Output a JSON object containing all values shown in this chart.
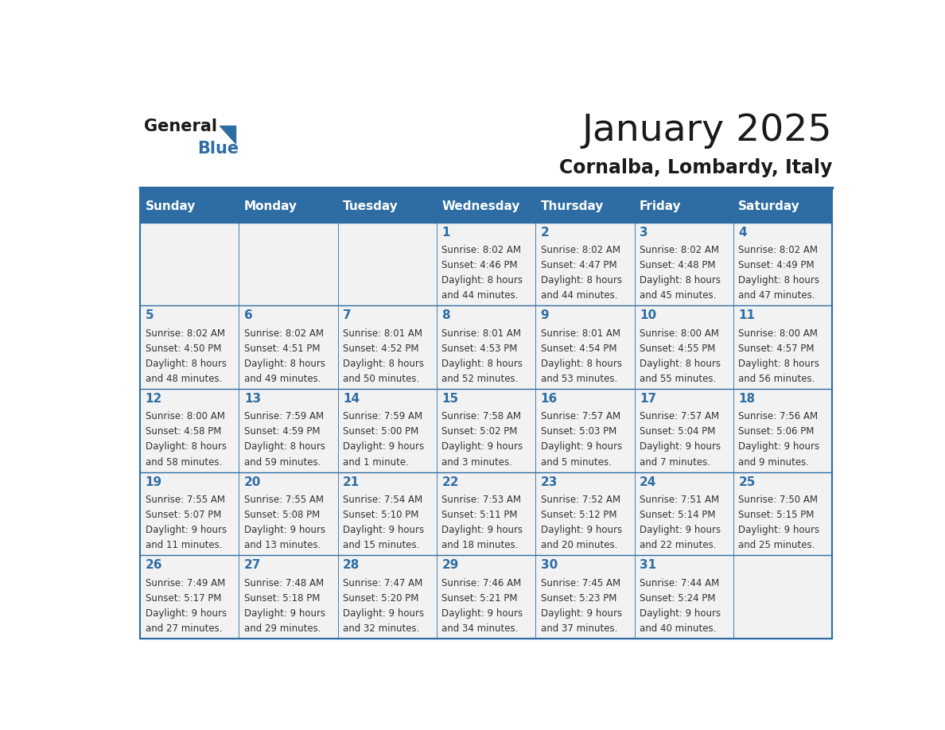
{
  "title": "January 2025",
  "subtitle": "Cornalba, Lombardy, Italy",
  "header_bg": "#2E6DA4",
  "header_text_color": "#FFFFFF",
  "cell_bg": "#F2F2F2",
  "border_color": "#2E6DA4",
  "day_names": [
    "Sunday",
    "Monday",
    "Tuesday",
    "Wednesday",
    "Thursday",
    "Friday",
    "Saturday"
  ],
  "title_color": "#1a1a1a",
  "subtitle_color": "#1a1a1a",
  "day_number_color": "#2E6DA4",
  "cell_text_color": "#333333",
  "calendar": [
    [
      {
        "day": null,
        "sunrise": null,
        "sunset": null,
        "daylight": null
      },
      {
        "day": null,
        "sunrise": null,
        "sunset": null,
        "daylight": null
      },
      {
        "day": null,
        "sunrise": null,
        "sunset": null,
        "daylight": null
      },
      {
        "day": 1,
        "sunrise": "8:02 AM",
        "sunset": "4:46 PM",
        "daylight": "8 hours\nand 44 minutes."
      },
      {
        "day": 2,
        "sunrise": "8:02 AM",
        "sunset": "4:47 PM",
        "daylight": "8 hours\nand 44 minutes."
      },
      {
        "day": 3,
        "sunrise": "8:02 AM",
        "sunset": "4:48 PM",
        "daylight": "8 hours\nand 45 minutes."
      },
      {
        "day": 4,
        "sunrise": "8:02 AM",
        "sunset": "4:49 PM",
        "daylight": "8 hours\nand 47 minutes."
      }
    ],
    [
      {
        "day": 5,
        "sunrise": "8:02 AM",
        "sunset": "4:50 PM",
        "daylight": "8 hours\nand 48 minutes."
      },
      {
        "day": 6,
        "sunrise": "8:02 AM",
        "sunset": "4:51 PM",
        "daylight": "8 hours\nand 49 minutes."
      },
      {
        "day": 7,
        "sunrise": "8:01 AM",
        "sunset": "4:52 PM",
        "daylight": "8 hours\nand 50 minutes."
      },
      {
        "day": 8,
        "sunrise": "8:01 AM",
        "sunset": "4:53 PM",
        "daylight": "8 hours\nand 52 minutes."
      },
      {
        "day": 9,
        "sunrise": "8:01 AM",
        "sunset": "4:54 PM",
        "daylight": "8 hours\nand 53 minutes."
      },
      {
        "day": 10,
        "sunrise": "8:00 AM",
        "sunset": "4:55 PM",
        "daylight": "8 hours\nand 55 minutes."
      },
      {
        "day": 11,
        "sunrise": "8:00 AM",
        "sunset": "4:57 PM",
        "daylight": "8 hours\nand 56 minutes."
      }
    ],
    [
      {
        "day": 12,
        "sunrise": "8:00 AM",
        "sunset": "4:58 PM",
        "daylight": "8 hours\nand 58 minutes."
      },
      {
        "day": 13,
        "sunrise": "7:59 AM",
        "sunset": "4:59 PM",
        "daylight": "8 hours\nand 59 minutes."
      },
      {
        "day": 14,
        "sunrise": "7:59 AM",
        "sunset": "5:00 PM",
        "daylight": "9 hours\nand 1 minute."
      },
      {
        "day": 15,
        "sunrise": "7:58 AM",
        "sunset": "5:02 PM",
        "daylight": "9 hours\nand 3 minutes."
      },
      {
        "day": 16,
        "sunrise": "7:57 AM",
        "sunset": "5:03 PM",
        "daylight": "9 hours\nand 5 minutes."
      },
      {
        "day": 17,
        "sunrise": "7:57 AM",
        "sunset": "5:04 PM",
        "daylight": "9 hours\nand 7 minutes."
      },
      {
        "day": 18,
        "sunrise": "7:56 AM",
        "sunset": "5:06 PM",
        "daylight": "9 hours\nand 9 minutes."
      }
    ],
    [
      {
        "day": 19,
        "sunrise": "7:55 AM",
        "sunset": "5:07 PM",
        "daylight": "9 hours\nand 11 minutes."
      },
      {
        "day": 20,
        "sunrise": "7:55 AM",
        "sunset": "5:08 PM",
        "daylight": "9 hours\nand 13 minutes."
      },
      {
        "day": 21,
        "sunrise": "7:54 AM",
        "sunset": "5:10 PM",
        "daylight": "9 hours\nand 15 minutes."
      },
      {
        "day": 22,
        "sunrise": "7:53 AM",
        "sunset": "5:11 PM",
        "daylight": "9 hours\nand 18 minutes."
      },
      {
        "day": 23,
        "sunrise": "7:52 AM",
        "sunset": "5:12 PM",
        "daylight": "9 hours\nand 20 minutes."
      },
      {
        "day": 24,
        "sunrise": "7:51 AM",
        "sunset": "5:14 PM",
        "daylight": "9 hours\nand 22 minutes."
      },
      {
        "day": 25,
        "sunrise": "7:50 AM",
        "sunset": "5:15 PM",
        "daylight": "9 hours\nand 25 minutes."
      }
    ],
    [
      {
        "day": 26,
        "sunrise": "7:49 AM",
        "sunset": "5:17 PM",
        "daylight": "9 hours\nand 27 minutes."
      },
      {
        "day": 27,
        "sunrise": "7:48 AM",
        "sunset": "5:18 PM",
        "daylight": "9 hours\nand 29 minutes."
      },
      {
        "day": 28,
        "sunrise": "7:47 AM",
        "sunset": "5:20 PM",
        "daylight": "9 hours\nand 32 minutes."
      },
      {
        "day": 29,
        "sunrise": "7:46 AM",
        "sunset": "5:21 PM",
        "daylight": "9 hours\nand 34 minutes."
      },
      {
        "day": 30,
        "sunrise": "7:45 AM",
        "sunset": "5:23 PM",
        "daylight": "9 hours\nand 37 minutes."
      },
      {
        "day": 31,
        "sunrise": "7:44 AM",
        "sunset": "5:24 PM",
        "daylight": "9 hours\nand 40 minutes."
      },
      {
        "day": null,
        "sunrise": null,
        "sunset": null,
        "daylight": null
      }
    ]
  ]
}
